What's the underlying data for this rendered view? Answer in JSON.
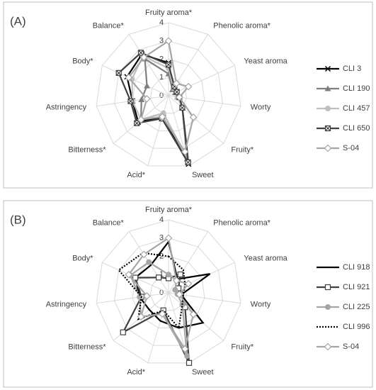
{
  "chart_data": [
    {
      "type": "radar",
      "title": "(A)",
      "categories": [
        "Fruity aroma*",
        "Phenolic aroma*",
        "Yeast aroma",
        "Worty",
        "Fruity*",
        "Sweet",
        "Acid*",
        "Bitterness*",
        "Astringency",
        "Body*",
        "Balance*"
      ],
      "rlim": [
        0,
        4
      ],
      "rticks": [
        0,
        1,
        2,
        3,
        4
      ],
      "grid": true,
      "series": [
        {
          "name": "CLI 3",
          "color": "#000000",
          "marker": "x",
          "dash": "solid",
          "values": [
            1.8,
            0.5,
            0.5,
            0.6,
            1.0,
            3.9,
            1.2,
            2.2,
            2.0,
            2.5,
            2.7
          ]
        },
        {
          "name": "CLI 190",
          "color": "#7f7f7f",
          "marker": "triangle",
          "dash": "solid",
          "values": [
            1.2,
            0.4,
            0.4,
            0.5,
            1.0,
            3.6,
            1.0,
            2.0,
            1.5,
            1.3,
            2.4
          ]
        },
        {
          "name": "CLI 457",
          "color": "#bfbfbf",
          "marker": "circle",
          "dash": "solid",
          "values": [
            1.5,
            0.5,
            0.5,
            0.5,
            1.0,
            3.5,
            1.0,
            2.0,
            2.0,
            2.2,
            2.6
          ]
        },
        {
          "name": "CLI 650",
          "color": "#404040",
          "marker": "square-x",
          "dash": "solid",
          "values": [
            1.7,
            0.6,
            0.5,
            0.6,
            1.0,
            3.8,
            1.3,
            2.3,
            2.1,
            3.0,
            2.8
          ]
        },
        {
          "name": "S-04",
          "color": "#a6a6a6",
          "marker": "diamond",
          "dash": "solid",
          "values": [
            3.0,
            0.8,
            1.2,
            0.6,
            1.8,
            3.2,
            1.2,
            2.0,
            1.2,
            2.4,
            2.5
          ]
        }
      ]
    },
    {
      "type": "radar",
      "title": "(B)",
      "categories": [
        "Fruity aroma*",
        "Phenolic aroma*",
        "Yeast aroma",
        "Worty",
        "Fruity*",
        "Sweet",
        "Acid*",
        "Bitterness*",
        "Astringency",
        "Body*",
        "Balance*"
      ],
      "rlim": [
        0,
        4
      ],
      "rticks": [
        0,
        1,
        2,
        3,
        4
      ],
      "grid": true,
      "series": [
        {
          "name": "CLI 918",
          "color": "#000000",
          "marker": "none",
          "dash": "solid",
          "values": [
            2.8,
            0.9,
            2.5,
            0.7,
            2.5,
            2.0,
            1.6,
            1.4,
            1.6,
            2.0,
            1.8
          ]
        },
        {
          "name": "CLI 921",
          "color": "#404040",
          "marker": "square",
          "dash": "solid",
          "values": [
            0.8,
            1.2,
            0.6,
            0.7,
            1.2,
            4.0,
            1.0,
            3.3,
            1.5,
            2.0,
            1.0
          ]
        },
        {
          "name": "CLI 225",
          "color": "#a6a6a6",
          "marker": "circle",
          "dash": "solid",
          "values": [
            1.0,
            0.8,
            0.4,
            0.5,
            1.0,
            3.6,
            1.2,
            2.0,
            1.6,
            2.3,
            2.0
          ]
        },
        {
          "name": "CLI 996",
          "color": "#000000",
          "marker": "none",
          "dash": "dotted",
          "values": [
            2.0,
            1.5,
            1.0,
            0.8,
            1.0,
            2.0,
            1.0,
            2.2,
            1.5,
            3.0,
            2.6
          ]
        },
        {
          "name": "S-04",
          "color": "#a6a6a6",
          "marker": "diamond",
          "dash": "solid",
          "values": [
            3.0,
            0.8,
            1.2,
            0.6,
            1.8,
            3.2,
            1.2,
            2.0,
            1.2,
            2.4,
            2.5
          ]
        }
      ]
    }
  ]
}
